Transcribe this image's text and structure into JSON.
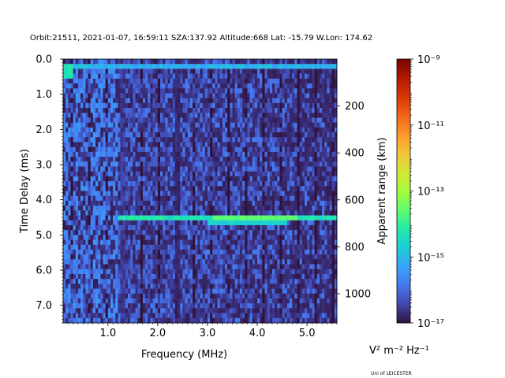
{
  "title": "Orbit:21511, 2021-01-07, 16:59:11 SZA:137.92 Altitude:668 Lat: -15.79 W.Lon: 174.62",
  "credit": "Uni of LEICESTER",
  "chart_data": {
    "type": "heatmap",
    "title": "Orbit:21511, 2021-01-07, 16:59:11 SZA:137.92 Altitude:668 Lat: -15.79 W.Lon: 174.62",
    "xlabel": "Frequency (MHz)",
    "ylabel": "Time Delay (ms)",
    "y2label": "Apparent range (km)",
    "xlim": [
      0.1,
      5.6
    ],
    "ylim": [
      7.5,
      0.0
    ],
    "x_ticks": [
      {
        "value": 1.0,
        "label": "1.0"
      },
      {
        "value": 2.0,
        "label": "2.0"
      },
      {
        "value": 3.0,
        "label": "3.0"
      },
      {
        "value": 4.0,
        "label": "4.0"
      },
      {
        "value": 5.0,
        "label": "5.0"
      }
    ],
    "y_ticks": [
      {
        "value": 0.0,
        "label": "0.0"
      },
      {
        "value": 1.0,
        "label": "1.0"
      },
      {
        "value": 2.0,
        "label": "2.0"
      },
      {
        "value": 3.0,
        "label": "3.0"
      },
      {
        "value": 4.0,
        "label": "4.0"
      },
      {
        "value": 5.0,
        "label": "5.0"
      },
      {
        "value": 6.0,
        "label": "6.0"
      },
      {
        "value": 7.0,
        "label": "7.0"
      }
    ],
    "y2_ticks": [
      {
        "value": 200,
        "label": "200"
      },
      {
        "value": 400,
        "label": "400"
      },
      {
        "value": 600,
        "label": "600"
      },
      {
        "value": 800,
        "label": "800"
      },
      {
        "value": 1000,
        "label": "1000"
      }
    ],
    "y2_km_per_ms": 149.9,
    "colorbar": {
      "label": "V² m⁻² Hz⁻¹",
      "scale": "log",
      "colormap": "turbo",
      "range_exponent": [
        -17,
        -9
      ],
      "ticks": [
        {
          "value": -9,
          "label": "10⁻⁹"
        },
        {
          "value": -11,
          "label": "10⁻¹¹"
        },
        {
          "value": -13,
          "label": "10⁻¹³"
        },
        {
          "value": -15,
          "label": "10⁻¹⁵"
        },
        {
          "value": -17,
          "label": "10⁻¹⁷"
        }
      ]
    },
    "background_log10": -16.3,
    "features": [
      {
        "name": "surface-echo",
        "delay_ms": 4.5,
        "freq_range": [
          1.2,
          5.6
        ],
        "log10": -14.3,
        "peak_freq_range": [
          3.1,
          4.8
        ],
        "peak_log10": -13.6
      },
      {
        "name": "top-band",
        "delay_ms": 0.2,
        "freq_range": [
          0.1,
          5.6
        ],
        "log10": -15.1
      },
      {
        "name": "low-freq-leak",
        "delay_range_ms": [
          0.1,
          0.6
        ],
        "freq_range": [
          0.1,
          0.3
        ],
        "log10": -14.5
      },
      {
        "name": "column-2.4MHz",
        "freq": 2.4,
        "log10": -16.9
      },
      {
        "name": "column-1.3MHz",
        "freq": 1.3,
        "log10": -16.8
      }
    ]
  }
}
